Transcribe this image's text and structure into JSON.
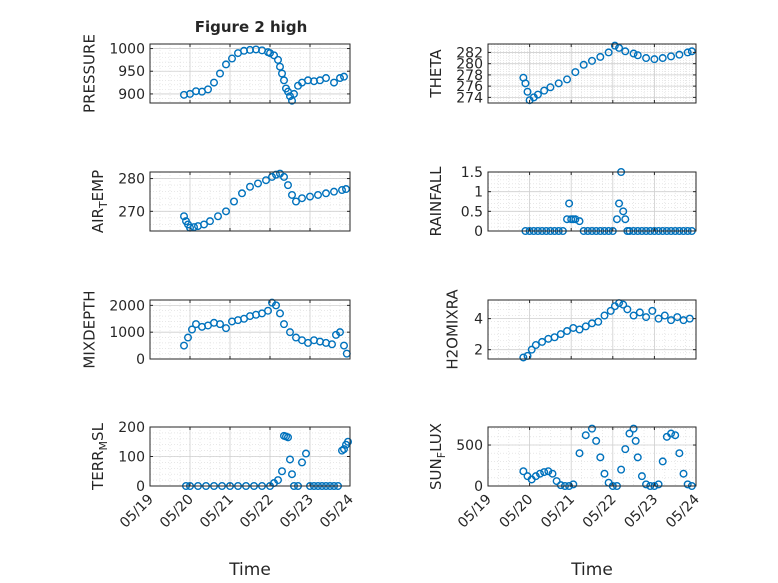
{
  "figure": {
    "title": "Figure 2 high"
  },
  "x_axis": {
    "label": "Time",
    "ticks": [
      "05/19",
      "05/20",
      "05/21",
      "05/22",
      "05/23",
      "05/24"
    ],
    "range": [
      "05/19",
      "05/24"
    ]
  },
  "colors": {
    "marker": "#0072bd",
    "axis": "#262626",
    "grid": "#d9d9d9",
    "background": "#ffffff"
  },
  "chart_data": [
    {
      "type": "scatter",
      "ylabel": "PRESSURE",
      "ylim": [
        880,
        1010
      ],
      "yticks": [
        900,
        950,
        1000
      ],
      "yticklabels": [
        "900",
        "950",
        "1000"
      ],
      "grid": true,
      "marker": "circle-open",
      "x": [
        0.85,
        1.0,
        1.15,
        1.3,
        1.45,
        1.6,
        1.75,
        1.9,
        2.05,
        2.2,
        2.35,
        2.5,
        2.65,
        2.8,
        2.95,
        3.0,
        3.1,
        3.2,
        3.25,
        3.3,
        3.35,
        3.4,
        3.45,
        3.5,
        3.55,
        3.6,
        3.7,
        3.8,
        3.95,
        4.1,
        4.25,
        4.4,
        4.6,
        4.75,
        4.85
      ],
      "y": [
        898,
        900,
        906,
        905,
        910,
        925,
        945,
        965,
        978,
        990,
        995,
        997,
        998,
        996,
        992,
        990,
        985,
        975,
        960,
        945,
        930,
        912,
        905,
        895,
        885,
        900,
        918,
        925,
        930,
        928,
        930,
        935,
        925,
        935,
        938
      ]
    },
    {
      "type": "scatter",
      "ylabel": "THETA",
      "ylim": [
        273,
        283.5
      ],
      "yticks": [
        274,
        276,
        278,
        280,
        282
      ],
      "yticklabels": [
        "274",
        "276",
        "278",
        "280",
        "282"
      ],
      "grid": true,
      "marker": "circle-open",
      "x": [
        0.85,
        0.9,
        0.95,
        1.0,
        1.1,
        1.2,
        1.35,
        1.5,
        1.7,
        1.9,
        2.1,
        2.3,
        2.5,
        2.7,
        2.9,
        3.05,
        3.15,
        3.3,
        3.5,
        3.6,
        3.8,
        4.0,
        4.2,
        4.4,
        4.6,
        4.8,
        4.9
      ],
      "y": [
        277.5,
        276.5,
        275,
        273.5,
        274,
        274.5,
        275.2,
        275.8,
        276.5,
        277.2,
        278.5,
        279.8,
        280.5,
        281.2,
        282,
        283.2,
        282.8,
        282.2,
        281.8,
        281.5,
        281,
        280.8,
        281,
        281.3,
        281.6,
        282,
        282.2
      ]
    },
    {
      "type": "scatter",
      "ylabel": "AIR_TEMP",
      "ylim": [
        264,
        282
      ],
      "yticks": [
        270,
        280
      ],
      "yticklabels": [
        "270",
        "280"
      ],
      "grid": true,
      "marker": "circle-open",
      "x": [
        0.85,
        0.9,
        0.95,
        1.0,
        1.1,
        1.2,
        1.35,
        1.5,
        1.7,
        1.9,
        2.1,
        2.3,
        2.5,
        2.7,
        2.9,
        3.05,
        3.15,
        3.25,
        3.35,
        3.45,
        3.55,
        3.65,
        3.8,
        4.0,
        4.2,
        4.4,
        4.6,
        4.8,
        4.9
      ],
      "y": [
        268.5,
        267,
        266,
        265,
        265.2,
        265.5,
        266,
        267,
        268.5,
        270,
        273,
        275.5,
        277.5,
        278.5,
        279.5,
        280.5,
        281.2,
        281.5,
        280.5,
        278,
        275,
        273,
        274,
        274.5,
        275,
        275.5,
        276,
        276.5,
        276.8
      ]
    },
    {
      "type": "scatter",
      "ylabel": "RAINFALL",
      "ylim": [
        0,
        1.5
      ],
      "yticks": [
        0,
        0.5,
        1,
        1.5
      ],
      "yticklabels": [
        "0",
        "0.5",
        "1",
        "1.5"
      ],
      "grid": true,
      "marker": "circle-open",
      "x": [
        0.9,
        1.0,
        1.1,
        1.2,
        1.3,
        1.4,
        1.5,
        1.6,
        1.7,
        1.8,
        1.9,
        1.95,
        2.0,
        2.05,
        2.1,
        2.2,
        2.3,
        2.4,
        2.5,
        2.6,
        2.7,
        2.8,
        2.9,
        3.0,
        3.1,
        3.15,
        3.2,
        3.25,
        3.3,
        3.35,
        3.4,
        3.5,
        3.6,
        3.7,
        3.8,
        3.9,
        4.0,
        4.1,
        4.2,
        4.3,
        4.4,
        4.5,
        4.6,
        4.7,
        4.8,
        4.9
      ],
      "y": [
        0,
        0,
        0,
        0,
        0,
        0,
        0,
        0,
        0,
        0,
        0.3,
        0.7,
        0.3,
        0.3,
        0.3,
        0.25,
        0,
        0,
        0,
        0,
        0,
        0,
        0,
        0,
        0.3,
        0.7,
        1.5,
        0.5,
        0.3,
        0,
        0,
        0,
        0,
        0,
        0,
        0,
        0,
        0,
        0,
        0,
        0,
        0,
        0,
        0,
        0,
        0
      ]
    },
    {
      "type": "scatter",
      "ylabel": "MIXDEPTH",
      "ylim": [
        0,
        2200
      ],
      "yticks": [
        0,
        1000,
        2000
      ],
      "yticklabels": [
        "0",
        "1000",
        "2000"
      ],
      "grid": true,
      "marker": "circle-open",
      "x": [
        0.85,
        0.95,
        1.05,
        1.15,
        1.3,
        1.45,
        1.6,
        1.75,
        1.9,
        2.05,
        2.2,
        2.35,
        2.5,
        2.65,
        2.8,
        2.95,
        3.05,
        3.15,
        3.25,
        3.35,
        3.5,
        3.65,
        3.8,
        3.95,
        4.1,
        4.25,
        4.4,
        4.55,
        4.65,
        4.75,
        4.85,
        4.92
      ],
      "y": [
        500,
        800,
        1100,
        1300,
        1200,
        1250,
        1350,
        1300,
        1150,
        1400,
        1450,
        1500,
        1600,
        1650,
        1700,
        1800,
        2100,
        2000,
        1700,
        1300,
        1000,
        800,
        700,
        600,
        700,
        650,
        600,
        550,
        900,
        1000,
        500,
        200
      ]
    },
    {
      "type": "scatter",
      "ylabel": "H2OMIXRA",
      "ylim": [
        1.4,
        5.2
      ],
      "yticks": [
        2,
        4
      ],
      "yticklabels": [
        "2",
        "4"
      ],
      "grid": true,
      "marker": "circle-open",
      "x": [
        0.85,
        0.95,
        1.05,
        1.15,
        1.3,
        1.45,
        1.6,
        1.75,
        1.9,
        2.05,
        2.2,
        2.35,
        2.5,
        2.65,
        2.8,
        2.95,
        3.05,
        3.15,
        3.25,
        3.35,
        3.5,
        3.65,
        3.8,
        3.95,
        4.1,
        4.25,
        4.4,
        4.55,
        4.7,
        4.85
      ],
      "y": [
        1.5,
        1.6,
        2.0,
        2.3,
        2.5,
        2.7,
        2.8,
        3.0,
        3.2,
        3.4,
        3.3,
        3.5,
        3.7,
        3.8,
        4.2,
        4.5,
        4.8,
        5.0,
        4.9,
        4.6,
        4.2,
        4.4,
        4.1,
        4.5,
        4.0,
        4.2,
        3.9,
        4.1,
        3.9,
        4.0
      ]
    },
    {
      "type": "scatter",
      "ylabel": "TERR_MSL",
      "ylim": [
        0,
        200
      ],
      "yticks": [
        0,
        100,
        200
      ],
      "yticklabels": [
        "0",
        "100",
        "200"
      ],
      "grid": true,
      "marker": "circle-open",
      "x": [
        0.9,
        1.0,
        1.2,
        1.4,
        1.6,
        1.8,
        2.0,
        2.2,
        2.4,
        2.6,
        2.8,
        3.0,
        3.1,
        3.2,
        3.3,
        3.35,
        3.4,
        3.45,
        3.5,
        3.55,
        3.6,
        3.7,
        3.8,
        3.9,
        4.0,
        4.1,
        4.2,
        4.3,
        4.4,
        4.5,
        4.6,
        4.7,
        4.8,
        4.85,
        4.9,
        4.95
      ],
      "y": [
        0,
        0,
        0,
        0,
        0,
        0,
        0,
        0,
        0,
        0,
        0,
        0,
        10,
        20,
        50,
        170,
        168,
        165,
        90,
        40,
        0,
        0,
        80,
        110,
        0,
        0,
        0,
        0,
        0,
        0,
        0,
        0,
        120,
        125,
        140,
        150
      ]
    },
    {
      "type": "scatter",
      "ylabel": "SUN_FLUX",
      "ylim": [
        0,
        720
      ],
      "yticks": [
        0,
        500
      ],
      "yticklabels": [
        "0",
        "500"
      ],
      "grid": true,
      "marker": "circle-open",
      "x": [
        0.85,
        0.95,
        1.05,
        1.15,
        1.25,
        1.35,
        1.45,
        1.55,
        1.65,
        1.75,
        1.85,
        1.95,
        2.05,
        2.2,
        2.35,
        2.5,
        2.6,
        2.7,
        2.8,
        2.9,
        3.0,
        3.1,
        3.2,
        3.3,
        3.4,
        3.5,
        3.55,
        3.6,
        3.7,
        3.8,
        3.9,
        4.0,
        4.1,
        4.2,
        4.3,
        4.4,
        4.5,
        4.6,
        4.7,
        4.8,
        4.9
      ],
      "y": [
        180,
        120,
        80,
        120,
        150,
        170,
        180,
        150,
        60,
        10,
        0,
        0,
        20,
        400,
        620,
        700,
        550,
        350,
        150,
        40,
        0,
        0,
        200,
        450,
        640,
        700,
        550,
        350,
        120,
        20,
        0,
        0,
        20,
        300,
        600,
        640,
        620,
        400,
        150,
        20,
        0
      ]
    }
  ]
}
